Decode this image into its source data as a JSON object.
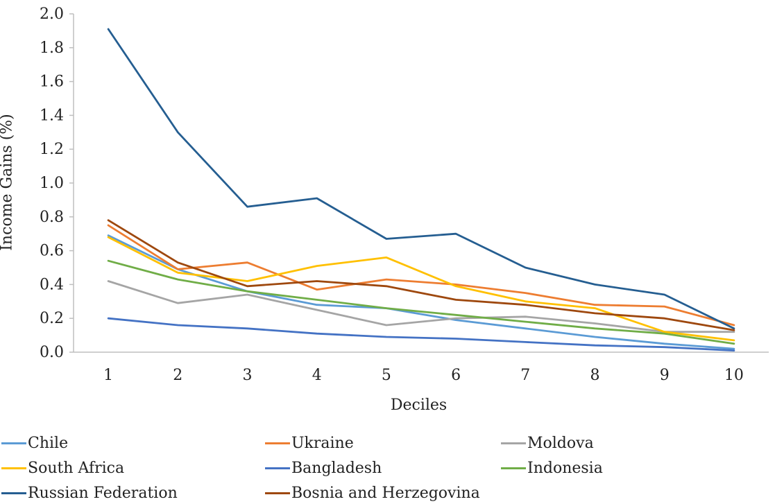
{
  "chart_data": {
    "type": "line",
    "title": "",
    "xlabel": "Deciles",
    "ylabel": "Income Gains (%)",
    "categories": [
      "1",
      "2",
      "3",
      "4",
      "5",
      "6",
      "7",
      "8",
      "9",
      "10"
    ],
    "ylim": [
      0,
      2.0
    ],
    "yticks": [
      "0.0",
      "0.2",
      "0.4",
      "0.6",
      "0.8",
      "1.0",
      "1.2",
      "1.4",
      "1.6",
      "1.8",
      "2.0"
    ],
    "grid": false,
    "legend_position": "bottom",
    "series": [
      {
        "name": "Chile",
        "color": "#5b9bd5",
        "values": [
          0.69,
          0.49,
          0.36,
          0.28,
          0.26,
          0.19,
          0.14,
          0.09,
          0.05,
          0.02
        ]
      },
      {
        "name": "Ukraine",
        "color": "#ed7d31",
        "values": [
          0.75,
          0.49,
          0.53,
          0.37,
          0.43,
          0.4,
          0.35,
          0.28,
          0.27,
          0.16
        ]
      },
      {
        "name": "Moldova",
        "color": "#a5a5a5",
        "values": [
          0.42,
          0.29,
          0.34,
          0.25,
          0.16,
          0.2,
          0.21,
          0.17,
          0.12,
          0.12
        ]
      },
      {
        "name": "South Africa",
        "color": "#ffc000",
        "values": [
          0.68,
          0.47,
          0.42,
          0.51,
          0.56,
          0.39,
          0.3,
          0.26,
          0.12,
          0.07
        ]
      },
      {
        "name": "Bangladesh",
        "color": "#4472c4",
        "values": [
          0.2,
          0.16,
          0.14,
          0.11,
          0.09,
          0.08,
          0.06,
          0.04,
          0.03,
          0.01
        ]
      },
      {
        "name": "Indonesia",
        "color": "#70ad47",
        "values": [
          0.54,
          0.43,
          0.36,
          0.31,
          0.26,
          0.22,
          0.18,
          0.14,
          0.11,
          0.05
        ]
      },
      {
        "name": "Russian Federation",
        "color": "#255e91",
        "values": [
          1.91,
          1.3,
          0.86,
          0.91,
          0.67,
          0.7,
          0.5,
          0.4,
          0.34,
          0.14
        ]
      },
      {
        "name": "Bosnia and Herzegovina",
        "color": "#9e480e",
        "values": [
          0.78,
          0.53,
          0.39,
          0.42,
          0.39,
          0.31,
          0.28,
          0.23,
          0.2,
          0.13
        ]
      }
    ]
  }
}
